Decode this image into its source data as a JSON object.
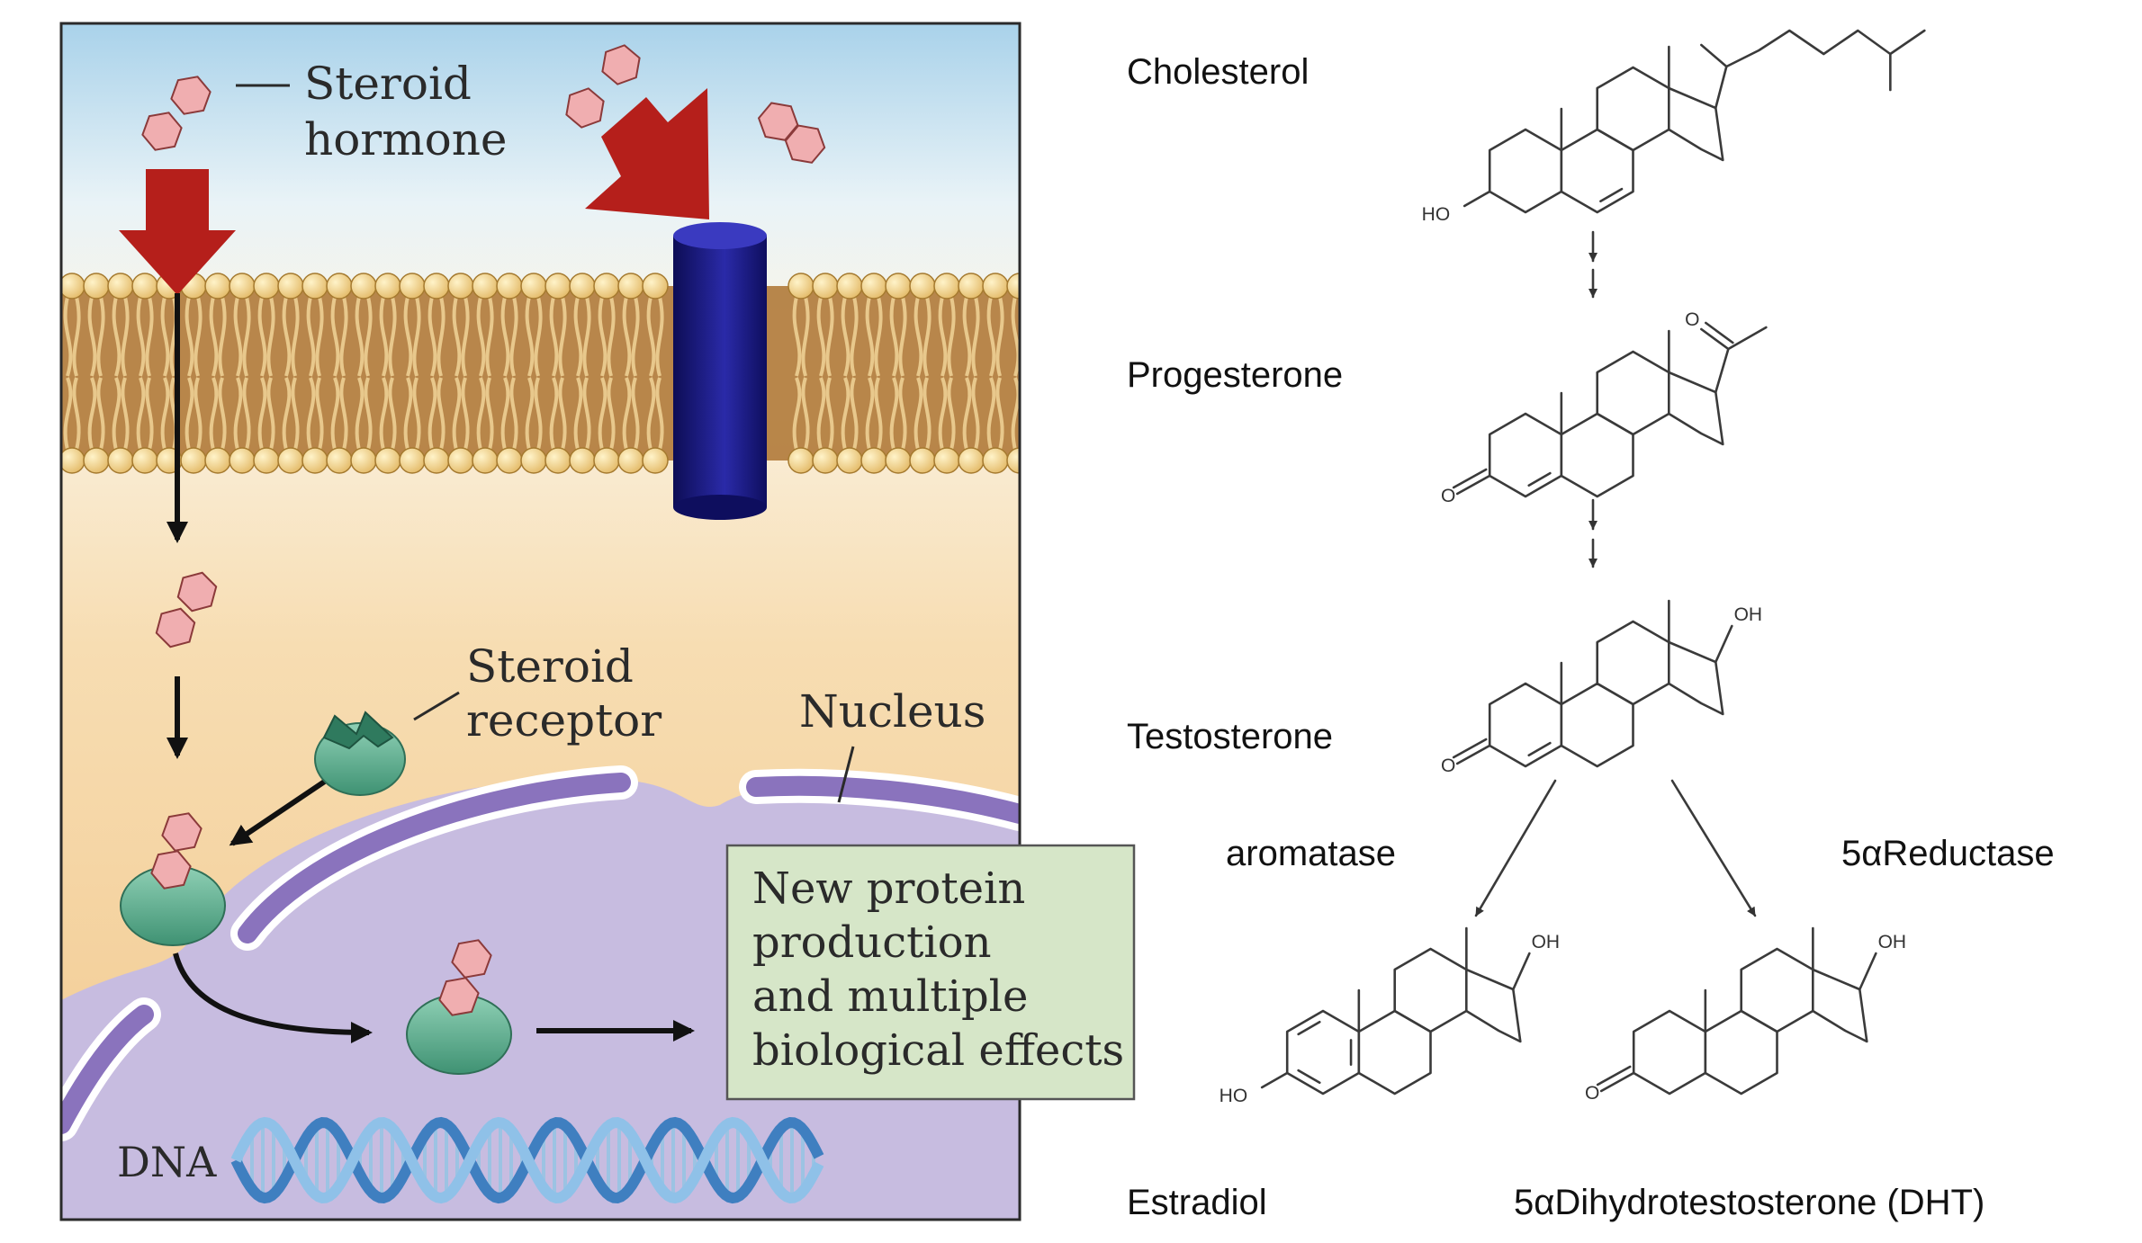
{
  "left_panel": {
    "label_steroid_hormone_line1": "Steroid",
    "label_steroid_hormone_line2": "hormone",
    "label_steroid_receptor_line1": "Steroid",
    "label_steroid_receptor_line2": "receptor",
    "label_nucleus": "Nucleus",
    "label_dna": "DNA",
    "effects_box_lines": [
      "New protein",
      "production",
      "and multiple",
      "biological effects"
    ]
  },
  "right_panel": {
    "compounds": {
      "cholesterol": "Cholesterol",
      "progesterone": "Progesterone",
      "testosterone": "Testosterone",
      "estradiol": "Estradiol",
      "dht": "5αDihydrotestosterone (DHT)"
    },
    "enzymes": {
      "aromatase": "aromatase",
      "reductase": "5αReductase"
    },
    "atom_labels": {
      "hydroxyl_left": "HO",
      "hydroxyl": "OH",
      "oxygen": "O"
    }
  },
  "colors": {
    "extracellular_top": "#a9d2ea",
    "cytoplasm": "#f4cf9a",
    "nucleus": "#c7bce0",
    "nuclear_envelope": "#8a73bd",
    "hormone": "#f0aeb0",
    "receptor": "#5aa98b",
    "entry_arrow": "#b51f1b",
    "membrane_receptor": "#15156e",
    "dna": "#4d8fc9",
    "effects_box": "#d6e6c8"
  }
}
